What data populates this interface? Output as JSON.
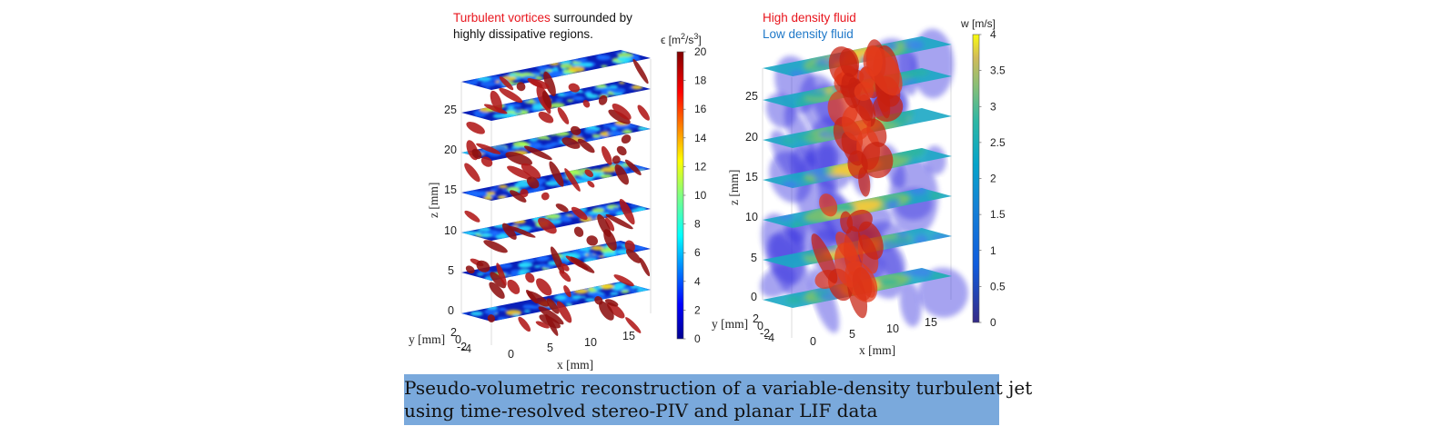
{
  "caption": {
    "line1": "Pseudo-volumetric reconstruction of a variable-density turbulent jet",
    "line2": "using time-resolved stereo-PIV and planar LIF data"
  },
  "left_annotation": {
    "highlight": "Turbulent vortices",
    "rest_line1": " surrounded by",
    "line2": "highly dissipative regions.",
    "highlight_color": "#e8141c"
  },
  "right_annotation": {
    "line1": "High density fluid",
    "line2": "Low density fluid",
    "color1": "#e8141c",
    "color2": "#1e78c8"
  },
  "chart_data": [
    {
      "type": "heatmap",
      "x": {
        "label": "x [mm]",
        "ticks": [
          0,
          5,
          10,
          15
        ]
      },
      "y": {
        "label": "y [mm]",
        "ticks": [
          2,
          0,
          -2,
          -4
        ]
      },
      "z": {
        "label": "z [mm]",
        "ticks": [
          0,
          5,
          10,
          15,
          20,
          25
        ]
      },
      "colorbar": {
        "label": "ϵ [m²/s³]",
        "label_text": "ϵ [m",
        "label_sup1": "2",
        "label_mid": "/s",
        "label_sup2": "3",
        "label_end": "]",
        "range": [
          0,
          20
        ],
        "ticks": [
          0,
          2,
          4,
          6,
          8,
          10,
          12,
          14,
          16,
          18,
          20
        ],
        "colormap": "jet"
      }
    },
    {
      "type": "heatmap",
      "x": {
        "label": "x [mm]",
        "ticks": [
          0,
          5,
          10,
          15
        ]
      },
      "y": {
        "label": "y [mm]",
        "ticks": [
          2,
          0,
          -2,
          -4
        ]
      },
      "z": {
        "label": "z [mm]",
        "ticks": [
          0,
          5,
          10,
          15,
          20,
          25
        ]
      },
      "colorbar": {
        "label": "w [m/s]",
        "range": [
          0,
          4
        ],
        "ticks": [
          0,
          0.5,
          1,
          1.5,
          2,
          2.5,
          3,
          3.5,
          4
        ],
        "colormap": "parula"
      }
    }
  ]
}
